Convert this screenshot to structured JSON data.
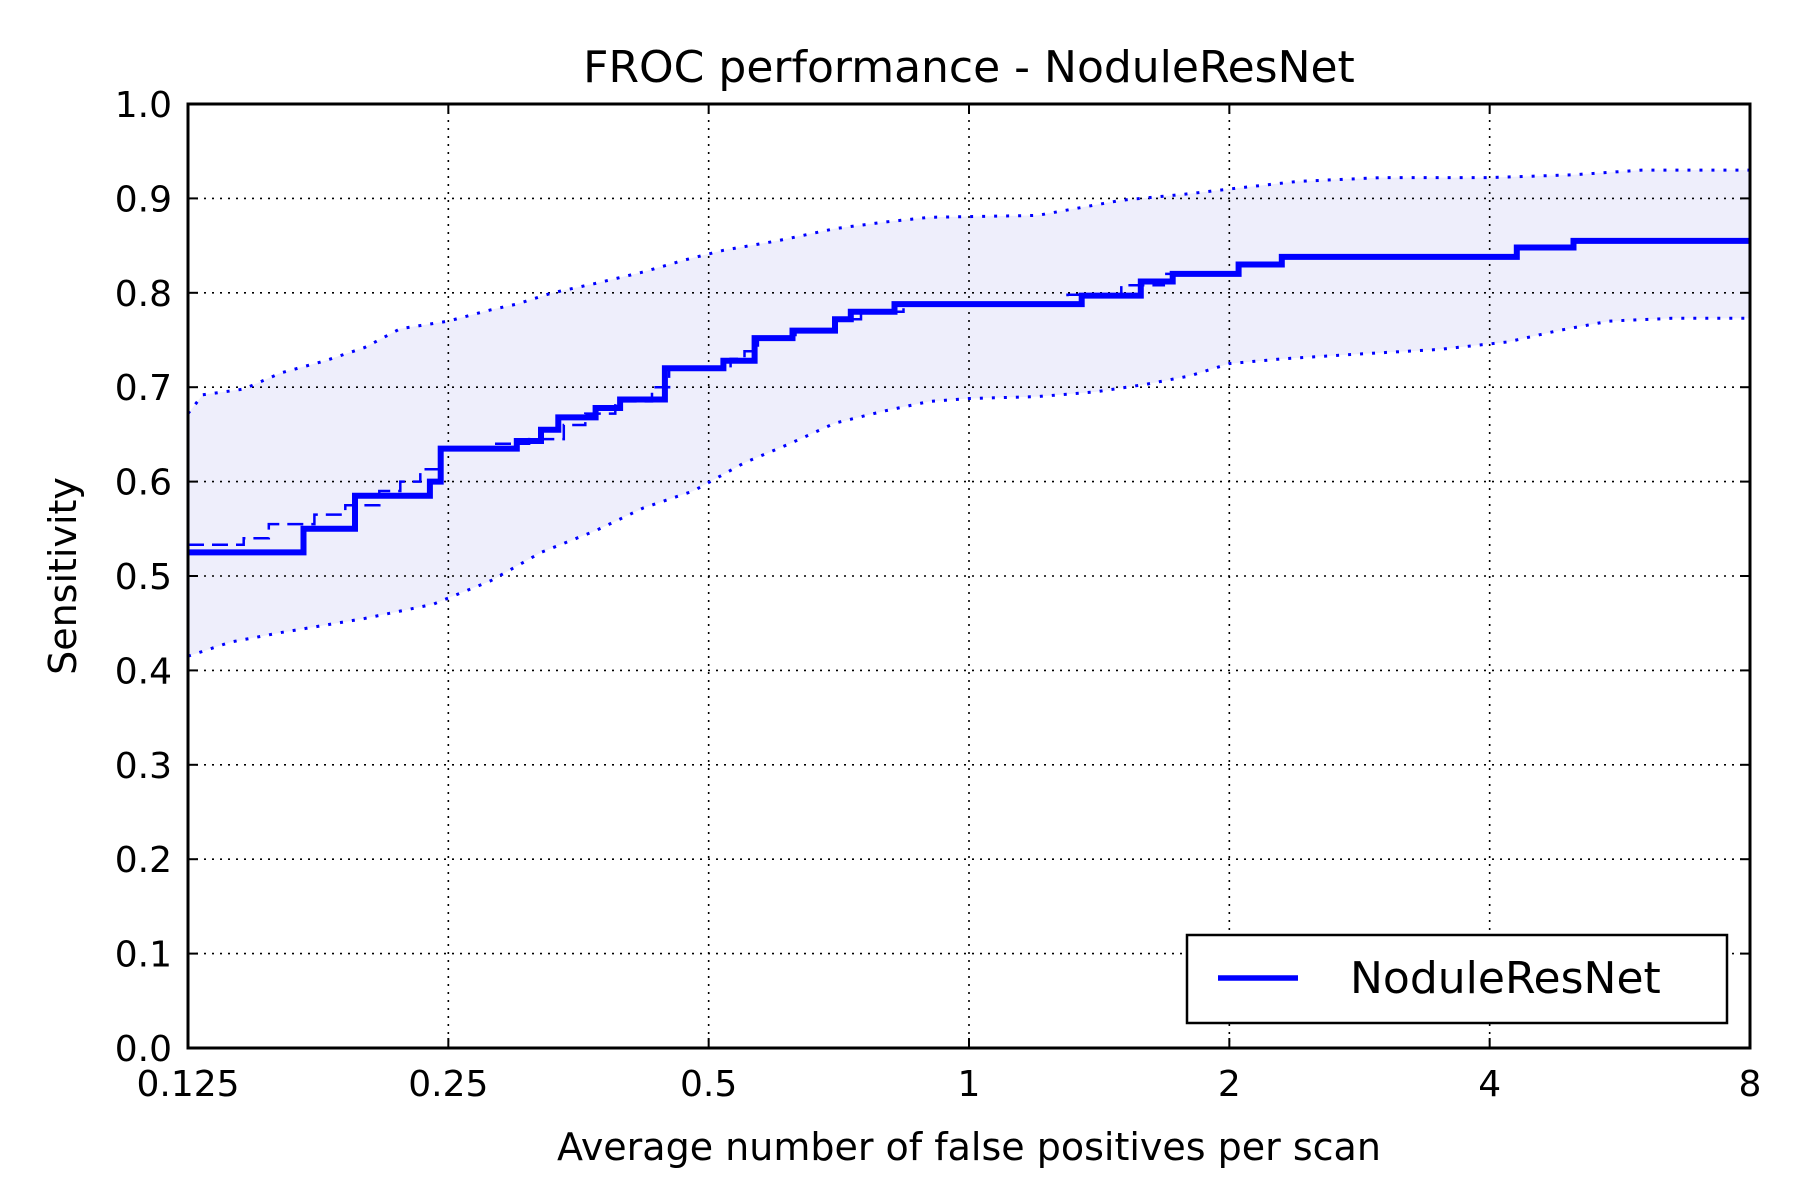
{
  "chart_data": {
    "type": "line",
    "title": "FROC performance - NoduleResNet",
    "xlabel": "Average number of false positives per scan",
    "ylabel": "Sensitivity",
    "xscale": "log2",
    "xlim": [
      0.125,
      8
    ],
    "ylim": [
      0.0,
      1.0
    ],
    "xticks": [
      0.125,
      0.25,
      0.5,
      1,
      2,
      4,
      8
    ],
    "xtick_labels": [
      "0.125",
      "0.25",
      "0.5",
      "1",
      "2",
      "4",
      "8"
    ],
    "yticks": [
      0.0,
      0.1,
      0.2,
      0.3,
      0.4,
      0.5,
      0.6,
      0.7,
      0.8,
      0.9,
      1.0
    ],
    "ytick_labels": [
      "0.0",
      "0.1",
      "0.2",
      "0.3",
      "0.4",
      "0.5",
      "0.6",
      "0.7",
      "0.8",
      "0.9",
      "1.0"
    ],
    "grid": true,
    "legend_position": "lower-right",
    "colors": {
      "line": "#0000ff",
      "band": "#eeeefb",
      "grid": "#000000"
    },
    "series": [
      {
        "name": "NoduleResNet",
        "style": "solid-step",
        "points": [
          [
            0.125,
            0.525
          ],
          [
            0.17,
            0.525
          ],
          [
            0.17,
            0.55
          ],
          [
            0.195,
            0.55
          ],
          [
            0.195,
            0.585
          ],
          [
            0.238,
            0.585
          ],
          [
            0.238,
            0.6
          ],
          [
            0.245,
            0.6
          ],
          [
            0.245,
            0.635
          ],
          [
            0.3,
            0.635
          ],
          [
            0.3,
            0.643
          ],
          [
            0.32,
            0.643
          ],
          [
            0.32,
            0.655
          ],
          [
            0.335,
            0.655
          ],
          [
            0.335,
            0.668
          ],
          [
            0.37,
            0.668
          ],
          [
            0.37,
            0.678
          ],
          [
            0.395,
            0.678
          ],
          [
            0.395,
            0.687
          ],
          [
            0.445,
            0.687
          ],
          [
            0.445,
            0.72
          ],
          [
            0.52,
            0.72
          ],
          [
            0.52,
            0.728
          ],
          [
            0.565,
            0.728
          ],
          [
            0.565,
            0.752
          ],
          [
            0.625,
            0.752
          ],
          [
            0.625,
            0.76
          ],
          [
            0.7,
            0.76
          ],
          [
            0.7,
            0.772
          ],
          [
            0.73,
            0.772
          ],
          [
            0.73,
            0.78
          ],
          [
            0.82,
            0.78
          ],
          [
            0.82,
            0.788
          ],
          [
            1.35,
            0.788
          ],
          [
            1.35,
            0.797
          ],
          [
            1.58,
            0.797
          ],
          [
            1.58,
            0.812
          ],
          [
            1.72,
            0.812
          ],
          [
            1.72,
            0.82
          ],
          [
            2.05,
            0.82
          ],
          [
            2.05,
            0.83
          ],
          [
            2.3,
            0.83
          ],
          [
            2.3,
            0.838
          ],
          [
            4.3,
            0.838
          ],
          [
            4.3,
            0.848
          ],
          [
            5.0,
            0.848
          ],
          [
            5.0,
            0.855
          ],
          [
            8.0,
            0.855
          ]
        ]
      },
      {
        "name": "",
        "style": "dashed-step",
        "points": [
          [
            0.125,
            0.533
          ],
          [
            0.145,
            0.533
          ],
          [
            0.145,
            0.54
          ],
          [
            0.155,
            0.54
          ],
          [
            0.155,
            0.555
          ],
          [
            0.175,
            0.555
          ],
          [
            0.175,
            0.565
          ],
          [
            0.19,
            0.565
          ],
          [
            0.19,
            0.575
          ],
          [
            0.208,
            0.575
          ],
          [
            0.208,
            0.59
          ],
          [
            0.22,
            0.59
          ],
          [
            0.22,
            0.6
          ],
          [
            0.232,
            0.6
          ],
          [
            0.232,
            0.613
          ],
          [
            0.245,
            0.613
          ],
          [
            0.245,
            0.635
          ],
          [
            0.28,
            0.635
          ],
          [
            0.28,
            0.64
          ],
          [
            0.31,
            0.64
          ],
          [
            0.31,
            0.645
          ],
          [
            0.34,
            0.645
          ],
          [
            0.34,
            0.66
          ],
          [
            0.36,
            0.66
          ],
          [
            0.36,
            0.672
          ],
          [
            0.39,
            0.672
          ],
          [
            0.39,
            0.685
          ],
          [
            0.43,
            0.685
          ],
          [
            0.43,
            0.7
          ],
          [
            0.45,
            0.7
          ],
          [
            0.45,
            0.72
          ],
          [
            0.53,
            0.72
          ],
          [
            0.53,
            0.73
          ],
          [
            0.55,
            0.73
          ],
          [
            0.55,
            0.738
          ],
          [
            0.57,
            0.738
          ],
          [
            0.57,
            0.752
          ],
          [
            0.63,
            0.752
          ],
          [
            0.63,
            0.76
          ],
          [
            0.7,
            0.76
          ],
          [
            0.7,
            0.772
          ],
          [
            0.75,
            0.772
          ],
          [
            0.75,
            0.78
          ],
          [
            0.84,
            0.78
          ],
          [
            0.84,
            0.788
          ],
          [
            1.3,
            0.788
          ],
          [
            1.3,
            0.798
          ],
          [
            1.5,
            0.798
          ],
          [
            1.5,
            0.808
          ],
          [
            1.68,
            0.808
          ],
          [
            1.68,
            0.82
          ],
          [
            2.05,
            0.82
          ],
          [
            2.05,
            0.83
          ],
          [
            2.3,
            0.83
          ],
          [
            2.3,
            0.838
          ],
          [
            4.3,
            0.838
          ],
          [
            4.3,
            0.848
          ],
          [
            5.0,
            0.848
          ],
          [
            5.0,
            0.855
          ],
          [
            8.0,
            0.855
          ]
        ]
      },
      {
        "name": "",
        "style": "dotted-upper",
        "points": [
          [
            0.125,
            0.672
          ],
          [
            0.13,
            0.692
          ],
          [
            0.145,
            0.698
          ],
          [
            0.16,
            0.715
          ],
          [
            0.18,
            0.728
          ],
          [
            0.2,
            0.742
          ],
          [
            0.22,
            0.762
          ],
          [
            0.25,
            0.77
          ],
          [
            0.28,
            0.782
          ],
          [
            0.3,
            0.788
          ],
          [
            0.33,
            0.8
          ],
          [
            0.37,
            0.81
          ],
          [
            0.42,
            0.822
          ],
          [
            0.47,
            0.835
          ],
          [
            0.52,
            0.845
          ],
          [
            0.6,
            0.855
          ],
          [
            0.7,
            0.868
          ],
          [
            0.8,
            0.875
          ],
          [
            0.9,
            0.88
          ],
          [
            1.2,
            0.882
          ],
          [
            1.5,
            0.898
          ],
          [
            1.8,
            0.905
          ],
          [
            2.0,
            0.91
          ],
          [
            2.4,
            0.918
          ],
          [
            3.0,
            0.922
          ],
          [
            4.0,
            0.922
          ],
          [
            5.0,
            0.925
          ],
          [
            6.0,
            0.93
          ],
          [
            8.0,
            0.93
          ]
        ]
      },
      {
        "name": "",
        "style": "dotted-lower",
        "points": [
          [
            0.125,
            0.415
          ],
          [
            0.14,
            0.43
          ],
          [
            0.16,
            0.44
          ],
          [
            0.2,
            0.455
          ],
          [
            0.24,
            0.47
          ],
          [
            0.28,
            0.495
          ],
          [
            0.32,
            0.525
          ],
          [
            0.37,
            0.548
          ],
          [
            0.42,
            0.572
          ],
          [
            0.48,
            0.59
          ],
          [
            0.55,
            0.62
          ],
          [
            0.62,
            0.64
          ],
          [
            0.7,
            0.662
          ],
          [
            0.8,
            0.675
          ],
          [
            0.9,
            0.685
          ],
          [
            1.0,
            0.688
          ],
          [
            1.2,
            0.69
          ],
          [
            1.4,
            0.695
          ],
          [
            1.6,
            0.703
          ],
          [
            1.8,
            0.712
          ],
          [
            2.0,
            0.725
          ],
          [
            2.3,
            0.73
          ],
          [
            2.8,
            0.735
          ],
          [
            3.5,
            0.74
          ],
          [
            4.2,
            0.748
          ],
          [
            4.8,
            0.76
          ],
          [
            5.5,
            0.77
          ],
          [
            6.5,
            0.773
          ],
          [
            8.0,
            0.773
          ]
        ]
      }
    ]
  }
}
